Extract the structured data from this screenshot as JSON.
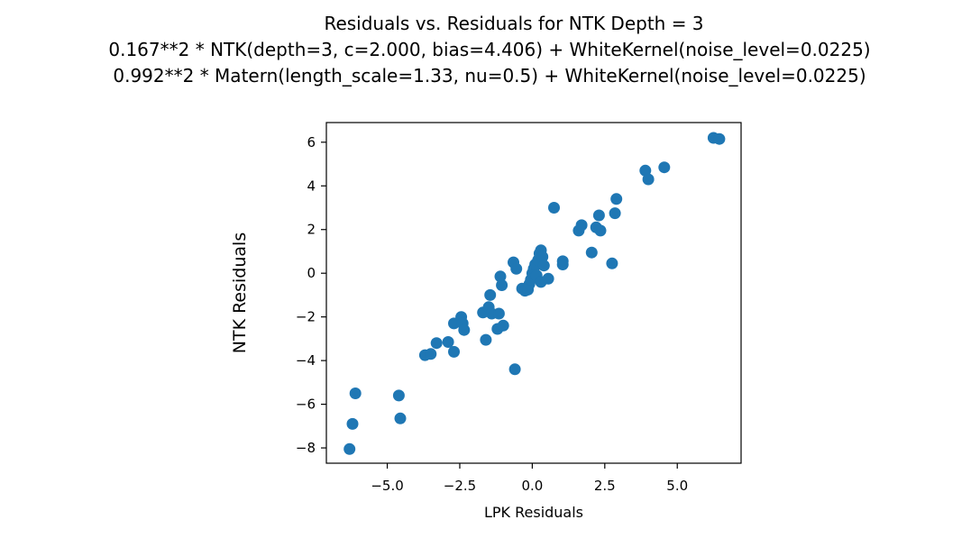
{
  "chart_data": {
    "type": "scatter",
    "title_lines": [
      "Residuals vs. Residuals for NTK Depth = 3",
      "0.167**2 * NTK(depth=3, c=2.000, bias=4.406) + WhiteKernel(noise_level=0.0225)",
      "0.992**2 * Matern(length_scale=1.33, nu=0.5) + WhiteKernel(noise_level=0.0225)"
    ],
    "xlabel": "LPK Residuals",
    "ylabel": "NTK Residuals",
    "xlim": [
      -7.1,
      7.2
    ],
    "ylim": [
      -8.7,
      6.9
    ],
    "xticks": [
      {
        "value": -5.0,
        "label": "−5.0"
      },
      {
        "value": -2.5,
        "label": "−2.5"
      },
      {
        "value": 0.0,
        "label": "0.0"
      },
      {
        "value": 2.5,
        "label": "2.5"
      },
      {
        "value": 5.0,
        "label": "5.0"
      }
    ],
    "yticks": [
      {
        "value": -8,
        "label": "−8"
      },
      {
        "value": -6,
        "label": "−6"
      },
      {
        "value": -4,
        "label": "−4"
      },
      {
        "value": -2,
        "label": "−2"
      },
      {
        "value": 0,
        "label": "0"
      },
      {
        "value": 2,
        "label": "2"
      },
      {
        "value": 4,
        "label": "4"
      },
      {
        "value": 6,
        "label": "6"
      }
    ],
    "grid": false,
    "marker_color": "#1f77b4",
    "points": [
      [
        -6.3,
        -8.05
      ],
      [
        -6.2,
        -6.9
      ],
      [
        -6.1,
        -5.5
      ],
      [
        -4.6,
        -5.6
      ],
      [
        -4.55,
        -6.65
      ],
      [
        -3.7,
        -3.75
      ],
      [
        -3.5,
        -3.7
      ],
      [
        -3.3,
        -3.2
      ],
      [
        -2.9,
        -3.15
      ],
      [
        -2.7,
        -3.6
      ],
      [
        -2.7,
        -2.3
      ],
      [
        -2.45,
        -2.0
      ],
      [
        -2.4,
        -2.3
      ],
      [
        -2.35,
        -2.6
      ],
      [
        -1.7,
        -1.8
      ],
      [
        -1.6,
        -3.05
      ],
      [
        -1.5,
        -1.55
      ],
      [
        -1.45,
        -1.0
      ],
      [
        -1.4,
        -1.85
      ],
      [
        -1.2,
        -2.55
      ],
      [
        -1.15,
        -1.85
      ],
      [
        -1.1,
        -0.15
      ],
      [
        -1.05,
        -0.55
      ],
      [
        -1.0,
        -2.4
      ],
      [
        -0.65,
        0.5
      ],
      [
        -0.55,
        0.2
      ],
      [
        -0.6,
        -4.4
      ],
      [
        -0.35,
        -0.7
      ],
      [
        -0.25,
        -0.8
      ],
      [
        -0.15,
        -0.75
      ],
      [
        -0.1,
        -0.5
      ],
      [
        -0.05,
        -0.3
      ],
      [
        0.0,
        0.0
      ],
      [
        0.05,
        0.2
      ],
      [
        0.1,
        0.4
      ],
      [
        0.15,
        -0.1
      ],
      [
        0.2,
        0.6
      ],
      [
        0.25,
        0.9
      ],
      [
        0.3,
        1.05
      ],
      [
        0.35,
        0.75
      ],
      [
        0.3,
        -0.4
      ],
      [
        0.4,
        0.35
      ],
      [
        0.55,
        -0.25
      ],
      [
        0.75,
        3.0
      ],
      [
        1.05,
        0.55
      ],
      [
        1.05,
        0.4
      ],
      [
        1.6,
        1.95
      ],
      [
        1.7,
        2.2
      ],
      [
        2.05,
        0.95
      ],
      [
        2.2,
        2.1
      ],
      [
        2.3,
        2.65
      ],
      [
        2.35,
        1.95
      ],
      [
        2.75,
        0.45
      ],
      [
        2.85,
        2.75
      ],
      [
        2.9,
        3.4
      ],
      [
        3.9,
        4.7
      ],
      [
        4.0,
        4.3
      ],
      [
        4.55,
        4.85
      ],
      [
        6.25,
        6.2
      ],
      [
        6.45,
        6.15
      ]
    ]
  }
}
